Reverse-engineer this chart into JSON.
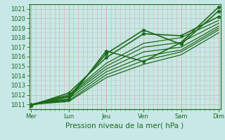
{
  "title": "",
  "xlabel": "Pression niveau de la mer( hPa )",
  "ylabel": "",
  "bg_color": "#c8e8e8",
  "grid_color_v": "#ddaaaa",
  "grid_color_h": "#aaccaa",
  "line_color": "#1a6b1a",
  "ylim": [
    1010.5,
    1021.5
  ],
  "yticks": [
    1011,
    1012,
    1013,
    1014,
    1015,
    1016,
    1017,
    1018,
    1019,
    1020,
    1021
  ],
  "xtick_labels": [
    "Mer",
    "Lun",
    "Jeu",
    "Ven",
    "Sam",
    "Dim"
  ],
  "xtick_positions": [
    0,
    1,
    2,
    3,
    4,
    5
  ],
  "series": [
    {
      "y": [
        1011.0,
        1011.5,
        1016.6,
        1015.5,
        1017.5,
        1021.2
      ],
      "marker": true,
      "lw": 1.2
    },
    {
      "y": [
        1010.9,
        1011.8,
        1016.3,
        1018.8,
        1017.3,
        1020.8
      ],
      "marker": true,
      "lw": 1.2
    },
    {
      "y": [
        1010.9,
        1012.2,
        1015.9,
        1018.4,
        1018.2,
        1020.2
      ],
      "marker": true,
      "lw": 1.2
    },
    {
      "y": [
        1011.0,
        1012.0,
        1015.3,
        1017.4,
        1018.0,
        1019.8
      ],
      "marker": false,
      "lw": 0.9
    },
    {
      "y": [
        1011.0,
        1011.9,
        1015.0,
        1017.0,
        1017.5,
        1019.5
      ],
      "marker": false,
      "lw": 0.9
    },
    {
      "y": [
        1011.0,
        1011.8,
        1014.7,
        1016.5,
        1017.0,
        1019.2
      ],
      "marker": false,
      "lw": 0.9
    },
    {
      "y": [
        1011.0,
        1011.6,
        1014.4,
        1016.0,
        1016.7,
        1019.0
      ],
      "marker": false,
      "lw": 0.9
    },
    {
      "y": [
        1011.0,
        1011.4,
        1014.1,
        1015.6,
        1016.5,
        1018.8
      ],
      "marker": false,
      "lw": 0.9
    },
    {
      "y": [
        1011.0,
        1011.3,
        1013.8,
        1015.2,
        1016.2,
        1018.5
      ],
      "marker": false,
      "lw": 0.9
    }
  ],
  "xlabel_fontsize": 7.5,
  "tick_fontsize": 6.0,
  "figsize": [
    3.2,
    2.0
  ],
  "dpi": 100
}
